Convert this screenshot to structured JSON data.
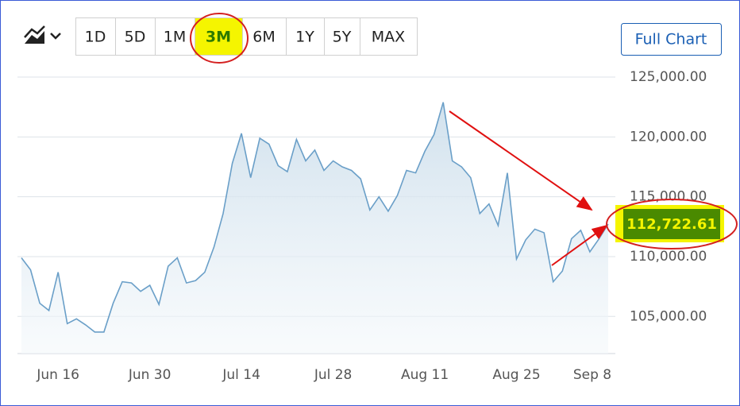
{
  "toolbar": {
    "ranges": [
      "1D",
      "5D",
      "1M",
      "3M",
      "6M",
      "1Y",
      "5Y",
      "MAX"
    ],
    "active_range": "3M",
    "full_chart": "Full Chart"
  },
  "chart_data": {
    "type": "line",
    "color": "#6a9fc8",
    "grid": true,
    "categories": [
      null,
      null,
      null,
      null,
      "Jun 16",
      null,
      null,
      null,
      null,
      null,
      null,
      null,
      null,
      null,
      "Jun 30",
      null,
      null,
      null,
      null,
      null,
      null,
      null,
      null,
      null,
      "Jul 14",
      null,
      null,
      null,
      null,
      null,
      null,
      null,
      null,
      null,
      "Jul 28",
      null,
      null,
      null,
      null,
      null,
      null,
      null,
      null,
      null,
      "Aug 11",
      null,
      null,
      null,
      null,
      null,
      null,
      null,
      null,
      null,
      "Aug 25",
      null,
      null,
      null,
      null,
      null,
      null,
      null,
      null,
      null,
      "Sep 8"
    ],
    "values": [
      109900,
      108900,
      106100,
      105500,
      108700,
      104400,
      104800,
      104300,
      103700,
      103700,
      106100,
      107900,
      107800,
      107100,
      107600,
      106000,
      109200,
      109900,
      107800,
      108000,
      108700,
      110800,
      113600,
      117800,
      120300,
      116600,
      119900,
      119400,
      117600,
      117100,
      119800,
      118000,
      118900,
      117200,
      118000,
      117500,
      117200,
      116500,
      113900,
      115000,
      113800,
      115100,
      117200,
      117000,
      118800,
      120200,
      122900,
      118000,
      117500,
      116600,
      113600,
      114400,
      112600,
      117000,
      109800,
      111400,
      112300,
      112000,
      107900,
      108800,
      111500,
      112200,
      110400,
      111500,
      112722.61
    ],
    "value_labels": [
      null,
      null,
      null,
      null,
      null,
      null,
      null,
      null,
      null,
      null,
      null,
      null,
      null,
      null,
      null,
      null,
      null,
      null,
      null,
      null,
      null,
      null,
      null,
      null,
      null,
      null,
      null,
      null,
      null,
      null,
      null,
      null,
      null,
      null,
      null,
      null,
      null,
      null,
      null,
      null,
      null,
      null,
      null,
      null,
      null,
      null,
      null,
      null,
      null,
      null,
      null,
      null,
      null,
      null,
      null,
      null,
      null,
      null,
      null,
      null,
      null,
      null,
      null,
      null,
      "112,722.61"
    ],
    "ylim": [
      101900,
      126000
    ],
    "yticks": [
      {
        "value": 105000,
        "label": "105,000.00"
      },
      {
        "value": 110000,
        "label": "110,000.00"
      },
      {
        "value": 115000,
        "label": "115,000.00"
      },
      {
        "value": 120000,
        "label": "120,000.00"
      },
      {
        "value": 125000,
        "label": "125,000.00"
      }
    ]
  }
}
